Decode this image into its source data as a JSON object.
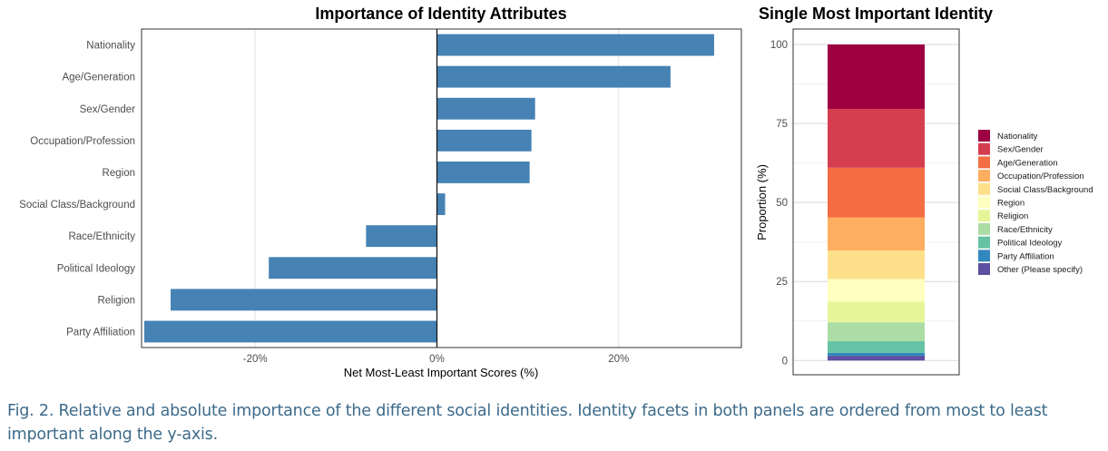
{
  "chart_data": [
    {
      "type": "bar",
      "orientation": "horizontal",
      "title": "Importance of Identity Attributes",
      "xlabel": "Net Most-Least Important Scores (%)",
      "ylabel": "",
      "xlim": [
        -32.5,
        33.5
      ],
      "xticks": [
        -20,
        0,
        20
      ],
      "xtick_labels": [
        "-20%",
        "0%",
        "20%"
      ],
      "grid": true,
      "bar_color": "#4682B4",
      "categories": [
        "Nationality",
        "Age/Generation",
        "Sex/Gender",
        "Occupation/Profession",
        "Region",
        "Social Class/Background",
        "Race/Ethnicity",
        "Political Ideology",
        "Religion",
        "Party Affiliation"
      ],
      "values": [
        30.5,
        25.7,
        10.8,
        10.4,
        10.2,
        0.9,
        -7.8,
        -18.5,
        -29.3,
        -32.2
      ]
    },
    {
      "type": "bar",
      "stacked": true,
      "title": "Single Most Important Identity",
      "xlabel": "",
      "ylabel": "Proportion (%)",
      "ylim": [
        0,
        100
      ],
      "yticks": [
        0,
        25,
        50,
        75,
        100
      ],
      "ytick_labels": [
        "0",
        "25",
        "50",
        "75",
        "100"
      ],
      "grid": true,
      "legend_position": "right",
      "series": [
        {
          "name": "Nationality",
          "value": 20.4,
          "color": "#9E0142"
        },
        {
          "name": "Sex/Gender",
          "value": 18.6,
          "color": "#D53E4F"
        },
        {
          "name": "Age/Generation",
          "value": 15.7,
          "color": "#F46D43"
        },
        {
          "name": "Occupation/Profession",
          "value": 10.5,
          "color": "#FDAE61"
        },
        {
          "name": "Social Class/Background",
          "value": 9.0,
          "color": "#FEE08B"
        },
        {
          "name": "Region",
          "value": 7.2,
          "color": "#FFFFBF"
        },
        {
          "name": "Religion",
          "value": 6.5,
          "color": "#E6F598"
        },
        {
          "name": "Race/Ethnicity",
          "value": 6.0,
          "color": "#ABDDA4"
        },
        {
          "name": "Political Ideology",
          "value": 3.7,
          "color": "#66C2A5"
        },
        {
          "name": "Party Affiliation",
          "value": 0.9,
          "color": "#3288BD"
        },
        {
          "name": "Other (Please specify)",
          "value": 1.5,
          "color": "#5E4FA2"
        }
      ]
    }
  ],
  "caption": "Fig. 2. Relative and absolute importance of the different social identities. Identity facets in both panels are ordered from most to least important along the y-axis."
}
